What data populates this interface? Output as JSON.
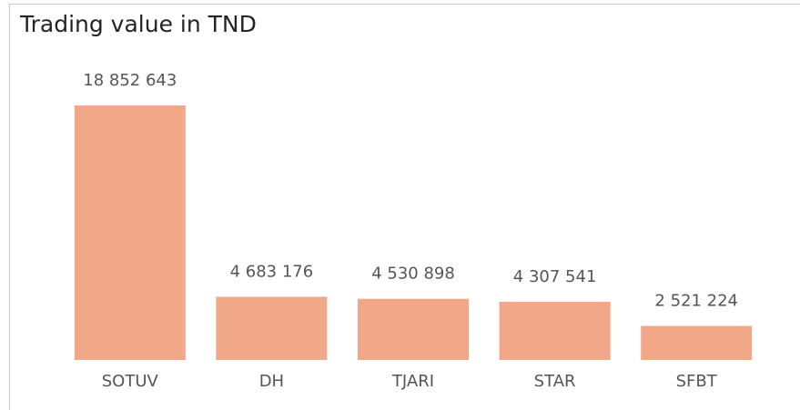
{
  "chart_data": {
    "type": "bar",
    "title": "Trading value in TND",
    "categories": [
      "SOTUV",
      "DH",
      "TJARI",
      "STAR",
      "SFBT"
    ],
    "values": [
      18852643,
      4683176,
      4530898,
      4307541,
      2521224
    ],
    "value_labels": [
      "18 852 643",
      "4 683 176",
      "4 530 898",
      "4 307 541",
      "2 521 224"
    ],
    "color": "#f0a888"
  }
}
